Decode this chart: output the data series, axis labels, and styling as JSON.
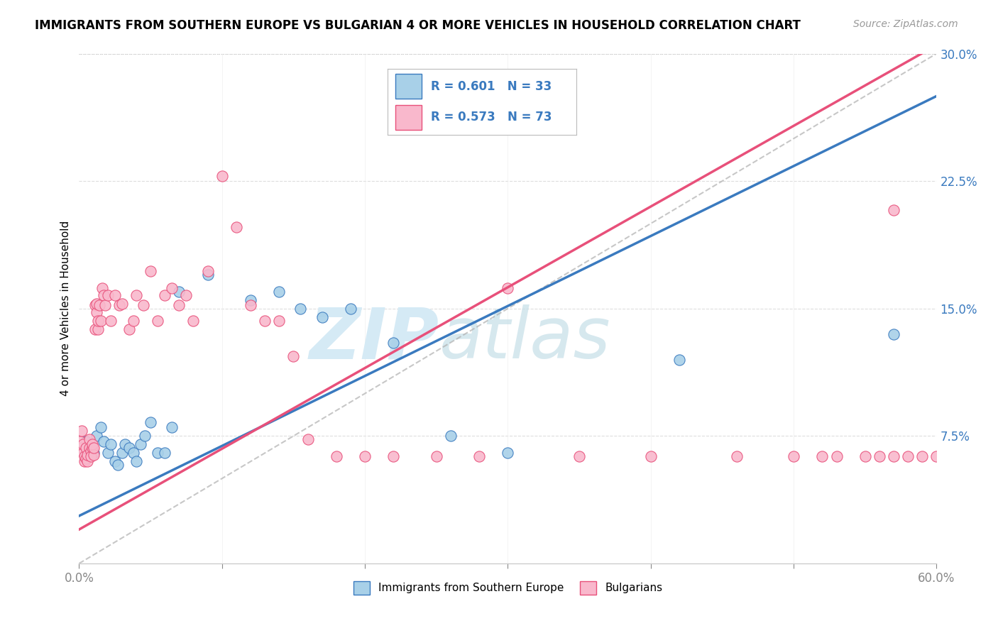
{
  "title": "IMMIGRANTS FROM SOUTHERN EUROPE VS BULGARIAN 4 OR MORE VEHICLES IN HOUSEHOLD CORRELATION CHART",
  "source": "Source: ZipAtlas.com",
  "ylabel": "4 or more Vehicles in Household",
  "xlim": [
    0.0,
    0.6
  ],
  "ylim": [
    0.0,
    0.3
  ],
  "xticks": [
    0.0,
    0.1,
    0.2,
    0.3,
    0.4,
    0.5,
    0.6
  ],
  "xtick_labels": [
    "0.0%",
    "",
    "",
    "",
    "",
    "",
    "60.0%"
  ],
  "yticks": [
    0.0,
    0.075,
    0.15,
    0.225,
    0.3
  ],
  "ytick_labels": [
    "",
    "7.5%",
    "15.0%",
    "22.5%",
    "30.0%"
  ],
  "legend_blue_label": "Immigrants from Southern Europe",
  "legend_pink_label": "Bulgarians",
  "R_blue": 0.601,
  "N_blue": 33,
  "R_pink": 0.573,
  "N_pink": 73,
  "blue_scatter_x": [
    0.005,
    0.008,
    0.01,
    0.012,
    0.015,
    0.017,
    0.02,
    0.022,
    0.025,
    0.027,
    0.03,
    0.032,
    0.035,
    0.038,
    0.04,
    0.043,
    0.046,
    0.05,
    0.055,
    0.06,
    0.065,
    0.07,
    0.09,
    0.12,
    0.14,
    0.155,
    0.17,
    0.19,
    0.22,
    0.26,
    0.3,
    0.42,
    0.57
  ],
  "blue_scatter_y": [
    0.072,
    0.068,
    0.065,
    0.075,
    0.08,
    0.072,
    0.065,
    0.07,
    0.06,
    0.058,
    0.065,
    0.07,
    0.068,
    0.065,
    0.06,
    0.07,
    0.075,
    0.083,
    0.065,
    0.065,
    0.08,
    0.16,
    0.17,
    0.155,
    0.16,
    0.15,
    0.145,
    0.15,
    0.13,
    0.075,
    0.065,
    0.12,
    0.135
  ],
  "pink_scatter_x": [
    0.001,
    0.002,
    0.002,
    0.003,
    0.003,
    0.004,
    0.004,
    0.005,
    0.005,
    0.006,
    0.006,
    0.007,
    0.007,
    0.008,
    0.008,
    0.009,
    0.009,
    0.01,
    0.01,
    0.011,
    0.011,
    0.012,
    0.012,
    0.013,
    0.013,
    0.014,
    0.015,
    0.016,
    0.017,
    0.018,
    0.02,
    0.022,
    0.025,
    0.028,
    0.03,
    0.035,
    0.038,
    0.04,
    0.045,
    0.05,
    0.055,
    0.06,
    0.065,
    0.07,
    0.075,
    0.08,
    0.09,
    0.1,
    0.11,
    0.12,
    0.13,
    0.14,
    0.15,
    0.16,
    0.18,
    0.2,
    0.22,
    0.25,
    0.28,
    0.3,
    0.35,
    0.4,
    0.46,
    0.5,
    0.52,
    0.55,
    0.56,
    0.57,
    0.58,
    0.59,
    0.6,
    0.53,
    0.57
  ],
  "pink_scatter_y": [
    0.072,
    0.078,
    0.068,
    0.065,
    0.07,
    0.06,
    0.063,
    0.062,
    0.068,
    0.06,
    0.064,
    0.068,
    0.073,
    0.066,
    0.063,
    0.068,
    0.07,
    0.064,
    0.068,
    0.152,
    0.138,
    0.148,
    0.153,
    0.138,
    0.143,
    0.152,
    0.143,
    0.162,
    0.158,
    0.152,
    0.158,
    0.143,
    0.158,
    0.152,
    0.153,
    0.138,
    0.143,
    0.158,
    0.152,
    0.172,
    0.143,
    0.158,
    0.162,
    0.152,
    0.158,
    0.143,
    0.172,
    0.228,
    0.198,
    0.152,
    0.143,
    0.143,
    0.122,
    0.073,
    0.063,
    0.063,
    0.063,
    0.063,
    0.063,
    0.162,
    0.063,
    0.063,
    0.063,
    0.063,
    0.063,
    0.063,
    0.063,
    0.063,
    0.063,
    0.063,
    0.063,
    0.063,
    0.208
  ],
  "blue_line_x": [
    0.0,
    0.6
  ],
  "blue_line_y": [
    0.028,
    0.275
  ],
  "pink_line_x": [
    0.0,
    0.6
  ],
  "pink_line_y": [
    0.02,
    0.305
  ],
  "diag_line_x": [
    0.0,
    0.6
  ],
  "diag_line_y": [
    0.0,
    0.3
  ],
  "blue_color": "#a8d0e8",
  "pink_color": "#f9b8cc",
  "blue_line_color": "#3a7abf",
  "pink_line_color": "#e8507a",
  "diag_line_color": "#b0b0b0",
  "background_color": "#ffffff",
  "watermark_color": "#d5eaf5"
}
